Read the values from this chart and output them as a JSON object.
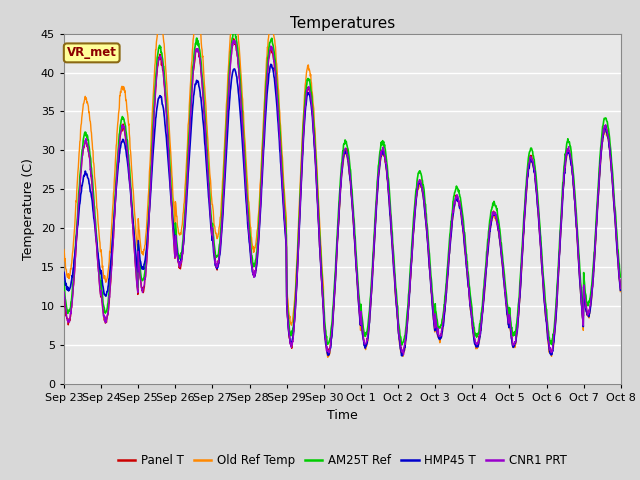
{
  "title": "Temperatures",
  "xlabel": "Time",
  "ylabel": "Temperature (C)",
  "annotation": "VR_met",
  "ylim": [
    0,
    45
  ],
  "background_color": "#d8d8d8",
  "plot_bg_color": "#e8e8e8",
  "series": [
    "Panel T",
    "Old Ref Temp",
    "AM25T Ref",
    "HMP45 T",
    "CNR1 PRT"
  ],
  "colors": [
    "#cc0000",
    "#ff8800",
    "#00cc00",
    "#0000cc",
    "#9900cc"
  ],
  "xtick_labels": [
    "Sep 23",
    "Sep 24",
    "Sep 25",
    "Sep 26",
    "Sep 27",
    "Sep 28",
    "Sep 29",
    "Sep 30",
    "Oct 1",
    "Oct 2",
    "Oct 3",
    "Oct 4",
    "Oct 5",
    "Oct 6",
    "Oct 7",
    "Oct 8"
  ],
  "grid_color": "#ffffff",
  "title_fontsize": 11,
  "axis_fontsize": 9,
  "tick_fontsize": 8,
  "legend_fontsize": 8.5
}
